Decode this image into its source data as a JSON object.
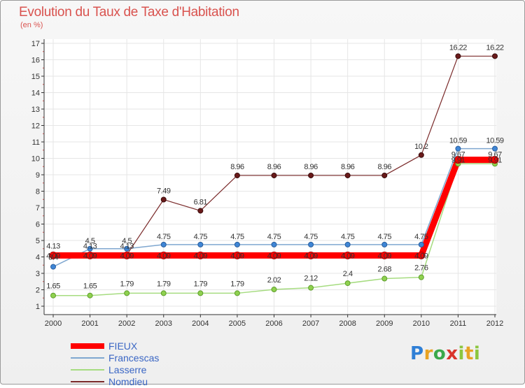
{
  "header": {
    "title": "Evolution du Taux de Taxe d'Habitation",
    "unit": "(en %)"
  },
  "logo": {
    "text": "Proxiti"
  },
  "chart_data": {
    "type": "line",
    "title": "Evolution du Taux de Taxe d'Habitation",
    "ylabel": "(en %)",
    "ylim": [
      1,
      17
    ],
    "grid": true,
    "legend_position": "bottom-left",
    "x": [
      "2000",
      "2001",
      "2002",
      "2003",
      "2004",
      "2005",
      "2006",
      "2007",
      "2008",
      "2009",
      "2010",
      "2011",
      "2012"
    ],
    "series": [
      {
        "name": "FIEUX",
        "color": "#ff0000",
        "values": [
          4.09,
          4.09,
          4.09,
          4.09,
          4.09,
          4.09,
          4.09,
          4.09,
          4.09,
          4.09,
          4.09,
          9.91,
          9.91
        ],
        "labels": [
          "4.09",
          "4.09",
          "4.09",
          "4.09",
          "4.09",
          "4.09",
          "4.09",
          "4.09",
          "4.09",
          "4.09",
          "4.09",
          "9.91",
          "9.91"
        ]
      },
      {
        "name": "Francescas",
        "color": "#7fa7d0",
        "values": [
          3.4,
          4.5,
          4.5,
          4.75,
          4.75,
          4.75,
          4.75,
          4.75,
          4.75,
          4.75,
          4.75,
          10.59,
          10.59
        ],
        "labels": [
          "3.4",
          "4.5",
          "4.5",
          "4.75",
          "4.75",
          "4.75",
          "4.75",
          "4.75",
          "4.75",
          "4.75",
          "4.75",
          "10.59",
          "10.59"
        ]
      },
      {
        "name": "Lasserre",
        "color": "#a6dc80",
        "values": [
          1.65,
          1.65,
          1.79,
          1.79,
          1.79,
          1.79,
          2.02,
          2.12,
          2.4,
          2.68,
          2.76,
          9.67,
          9.67
        ],
        "labels": [
          "1.65",
          "1.65",
          "1.79",
          "1.79",
          "1.79",
          "1.79",
          "2.02",
          "2.12",
          "2.4",
          "2.68",
          "2.76",
          "9.67",
          "9.67"
        ]
      },
      {
        "name": "Nomdieu",
        "color": "#7a2a2a",
        "values": [
          4.13,
          4.13,
          4.13,
          7.49,
          6.81,
          8.96,
          8.96,
          8.96,
          8.96,
          8.96,
          10.2,
          16.22,
          16.22
        ],
        "labels": [
          "4.13",
          "4.13",
          "4.13",
          "7.49",
          "6.81",
          "8.96",
          "8.96",
          "8.96",
          "8.96",
          "8.96",
          "10.2",
          "16.22",
          "16.22"
        ]
      }
    ],
    "y_ticks": [
      "1",
      "2",
      "3",
      "4",
      "5",
      "6",
      "7",
      "8",
      "9",
      "10",
      "11",
      "12",
      "13",
      "14",
      "15",
      "16",
      "17"
    ]
  }
}
